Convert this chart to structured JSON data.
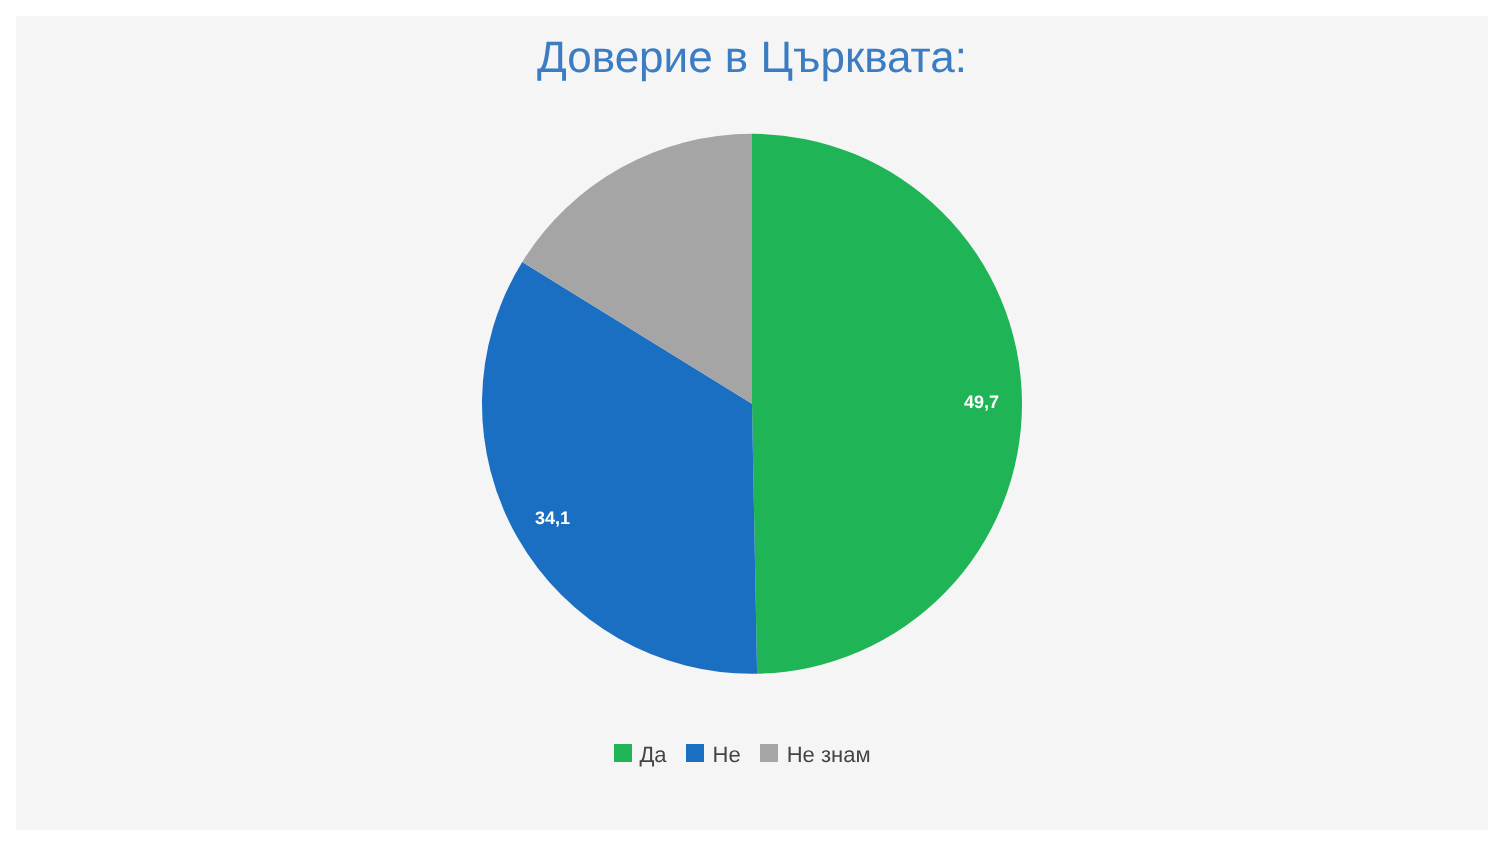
{
  "chart_data": {
    "type": "pie",
    "title": "Доверие в Църквата:",
    "categories": [
      "Да",
      "Не",
      "Не знам"
    ],
    "values": [
      49.7,
      34.1,
      16.2
    ],
    "value_labels": [
      "49,7",
      "34,1",
      null
    ],
    "colors": [
      "#1fb456",
      "#1b6fc2",
      "#a5a5a5"
    ],
    "legend": "bottom"
  }
}
